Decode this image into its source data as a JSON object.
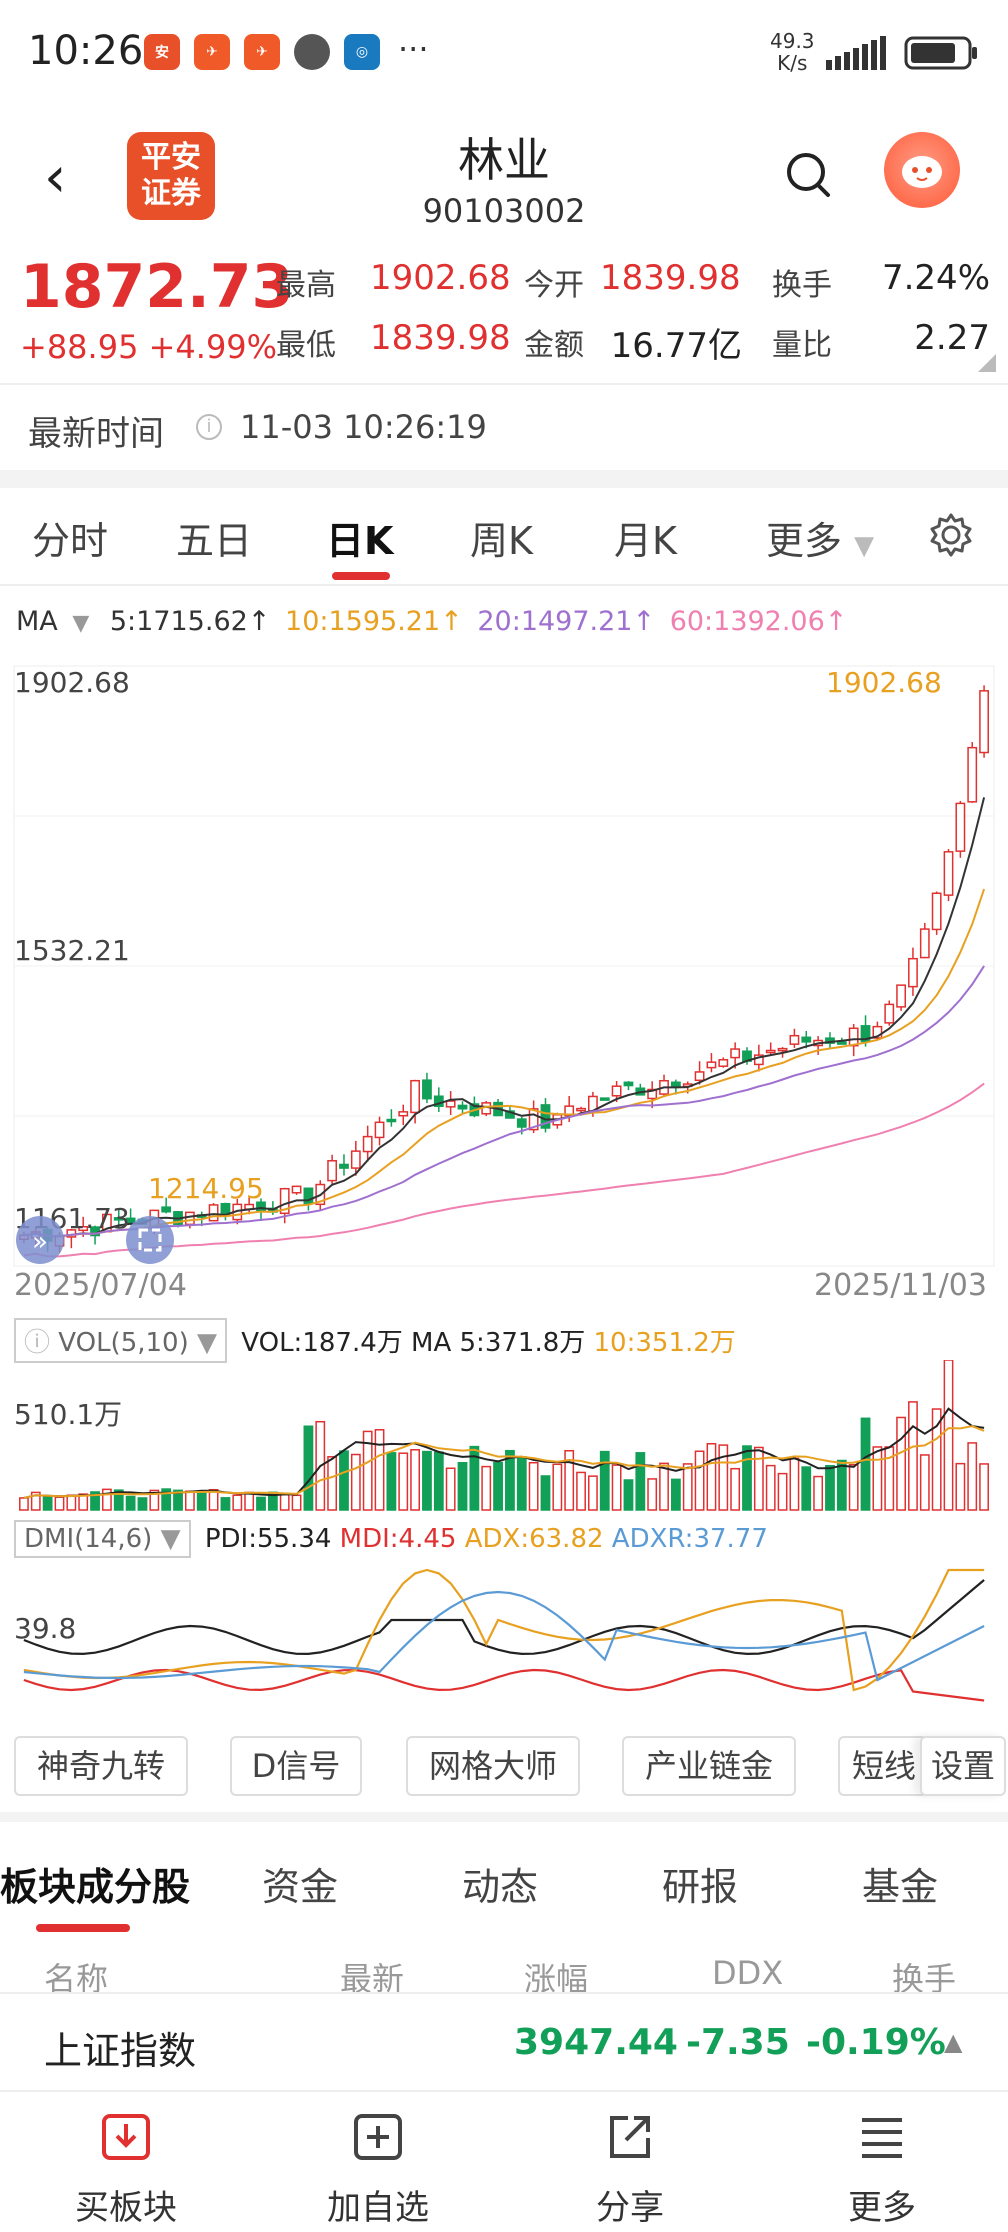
{
  "status": {
    "time": "10:26",
    "net_speed": "49.3",
    "net_unit": "K/s",
    "more": "···"
  },
  "header": {
    "title": "林业",
    "code": "90103002",
    "logo_text": "平安证券"
  },
  "quote": {
    "price": "1872.73",
    "change": "+88.95",
    "change_pct": "+4.99%",
    "high_label": "最高",
    "high": "1902.68",
    "low_label": "最低",
    "low": "1839.98",
    "open_label": "今开",
    "open": "1839.98",
    "amount_label": "金额",
    "amount": "16.77亿",
    "turnover_label": "换手",
    "turnover": "7.24%",
    "vol_ratio_label": "量比",
    "vol_ratio": "2.27"
  },
  "latest_time": {
    "label": "最新时间",
    "value": "11-03 10:26:19"
  },
  "tabs": [
    "分时",
    "五日",
    "日K",
    "周K",
    "月K",
    "更多"
  ],
  "active_tab": "日K",
  "ma": {
    "label": "MA",
    "ma5": "5:1715.62↑",
    "ma10": "10:1595.21↑",
    "ma20": "20:1497.21↑",
    "ma60": "60:1392.06↑",
    "colors": {
      "ma5": "#333333",
      "ma10": "#e8a020",
      "ma20": "#a070d0",
      "ma60": "#f080b0"
    }
  },
  "chart_labels": {
    "top": "1902.68",
    "mid": "1532.21",
    "bottom": "1161.73",
    "max_mark": "1902.68",
    "min_mark": "1214.95"
  },
  "dates": {
    "start": "2025/07/04",
    "end": "2025/11/03"
  },
  "vol": {
    "indicator": "VOL(5,10)",
    "vol": "VOL:187.4万",
    "ma5": "MA 5:371.8万",
    "ma10": "10:351.2万",
    "axis": "510.1万"
  },
  "dmi": {
    "indicator": "DMI(14,6)",
    "pdi": "PDI:55.34",
    "mdi": "MDI:4.45",
    "adx": "ADX:63.82",
    "adxr": "ADXR:37.77",
    "axis": "39.8"
  },
  "tools": [
    "神奇九转",
    "D信号",
    "网格大师",
    "产业链金",
    "短线",
    "设置"
  ],
  "lower_tabs": [
    "板块成分股",
    "资金",
    "动态",
    "研报",
    "基金"
  ],
  "columns": [
    "名称",
    "最新",
    "涨幅",
    "DDX",
    "换手"
  ],
  "index_row": {
    "name": "上证指数",
    "price": "3947.44",
    "change": "-7.35",
    "pct": "-0.19%"
  },
  "bottom_nav": [
    "买板块",
    "加自选",
    "分享",
    "更多"
  ],
  "colors": {
    "up": "#e03030",
    "down": "#12a058",
    "accent": "#e8502a"
  }
}
